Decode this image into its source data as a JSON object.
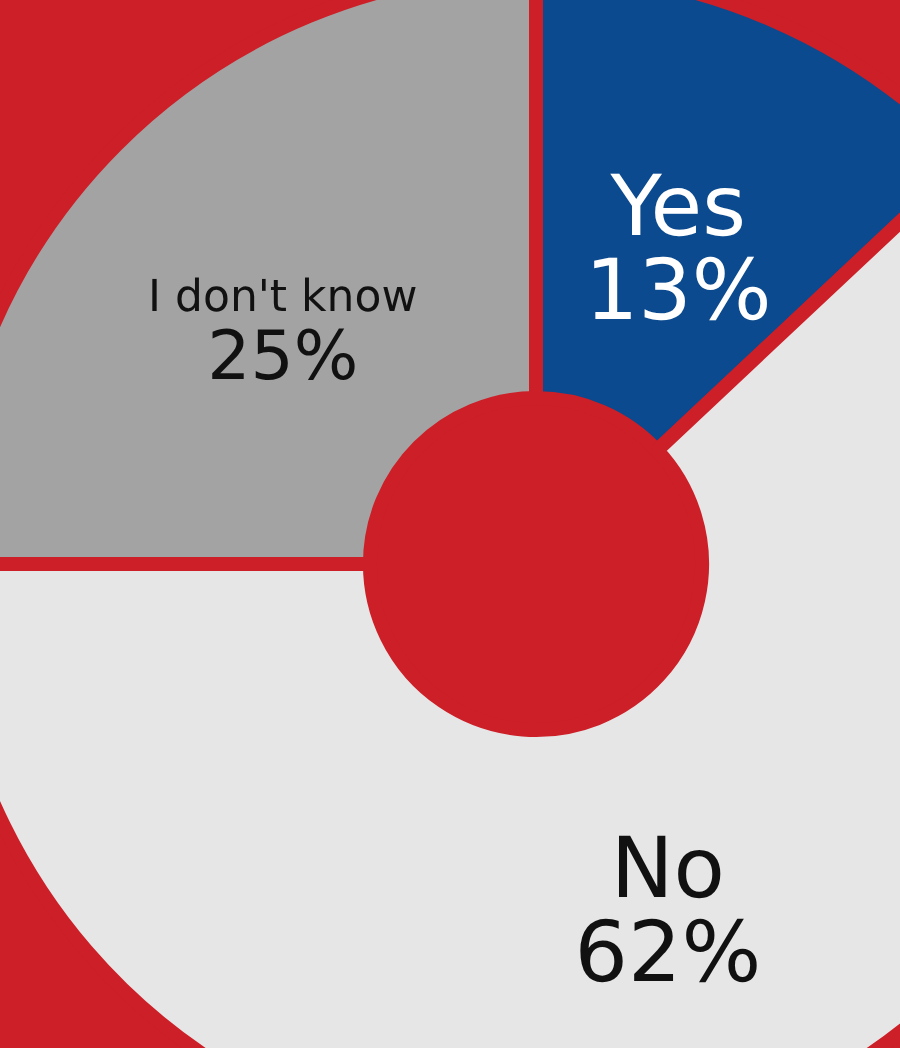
{
  "chart_data": {
    "type": "donut",
    "categories": [
      "Yes",
      "No",
      "I don't know"
    ],
    "values": [
      13,
      62,
      25
    ],
    "colors": [
      "#0b4a8e",
      "#e6e6e6",
      "#a3a3a3"
    ],
    "value_labels": [
      "13%",
      "62%",
      "25%"
    ],
    "legend": false
  }
}
